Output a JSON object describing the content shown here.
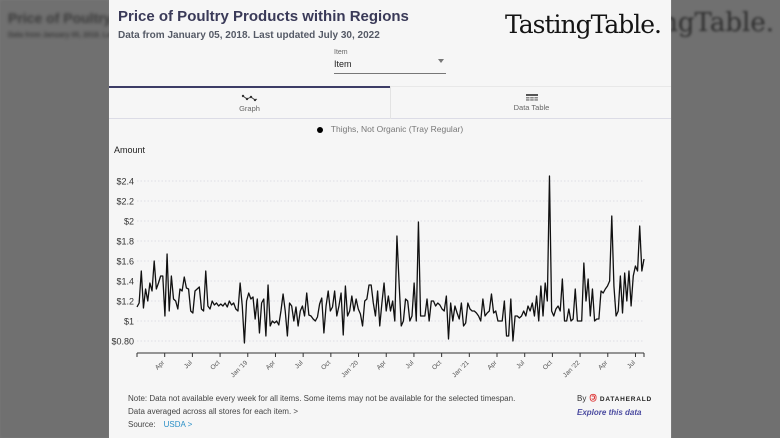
{
  "header": {
    "title": "Price of Poultry Products within Regions",
    "subtitle": "Data from January 05, 2018. Last updated July 30, 2022",
    "brand": "TastingTable."
  },
  "item_select": {
    "label": "Item",
    "value": "Item"
  },
  "tabs": [
    {
      "label": "Graph",
      "icon": "line-graph-icon",
      "active": true
    },
    {
      "label": "Data Table",
      "icon": "table-icon",
      "active": false
    }
  ],
  "footer": {
    "note_line1": "Note: Data not available every week for all items. Some items may not be available for the selected timespan.",
    "note_line2": "Data averaged across all stores for each item. >",
    "source_label": "Source:",
    "source_link": "USDA >",
    "by_label": "By",
    "by_brand": "DATAHERALD",
    "explore_link": "Explore this data"
  },
  "colors": {
    "title": "#3a3a58",
    "line": "#111111",
    "link": "#2a8fc6",
    "explore": "#4b4ba0",
    "tab_active": "#3d3d66"
  },
  "chart_data": {
    "type": "line",
    "title": "Price of Poultry Products within Regions",
    "xlabel": "",
    "ylabel": "Amount",
    "legend": {
      "entries": [
        "Thighs, Not Organic (Tray Regular)"
      ],
      "position": "top-center"
    },
    "ylim": [
      0.7,
      2.5
    ],
    "y_ticks": [
      0.8,
      1.0,
      1.2,
      1.4,
      1.6,
      1.8,
      2.0,
      2.2,
      2.4
    ],
    "y_tick_labels": [
      "$0.80",
      "$1",
      "$1.2",
      "$1.4",
      "$1.6",
      "$1.8",
      "$2",
      "$2.2",
      "$2.4"
    ],
    "grid": true,
    "x_range_weeks": [
      0,
      238
    ],
    "x_ticks": [
      {
        "week": 13,
        "label": "Apr"
      },
      {
        "week": 26,
        "label": "Jul"
      },
      {
        "week": 39,
        "label": "Oct"
      },
      {
        "week": 52,
        "label": "Jan '19"
      },
      {
        "week": 65,
        "label": "Apr"
      },
      {
        "week": 78,
        "label": "Jul"
      },
      {
        "week": 91,
        "label": "Oct"
      },
      {
        "week": 104,
        "label": "Jan '20"
      },
      {
        "week": 117,
        "label": "Apr"
      },
      {
        "week": 130,
        "label": "Jul"
      },
      {
        "week": 143,
        "label": "Oct"
      },
      {
        "week": 156,
        "label": "Jan '21"
      },
      {
        "week": 169,
        "label": "Apr"
      },
      {
        "week": 182,
        "label": "Jul"
      },
      {
        "week": 195,
        "label": "Oct"
      },
      {
        "week": 208,
        "label": "Jan '22"
      },
      {
        "week": 221,
        "label": "Apr"
      },
      {
        "week": 234,
        "label": "Jul"
      }
    ],
    "series": [
      {
        "name": "Thighs, Not Organic (Tray Regular)",
        "values": [
          1.14,
          1.18,
          1.5,
          1.13,
          1.32,
          1.2,
          1.38,
          1.3,
          1.6,
          1.32,
          1.38,
          1.45,
          1.45,
          1.05,
          1.67,
          1.1,
          1.45,
          1.22,
          1.2,
          1.12,
          1.32,
          1.3,
          1.44,
          1.33,
          1.32,
          1.1,
          1.08,
          1.3,
          1.32,
          1.34,
          1.12,
          1.1,
          1.5,
          1.15,
          1.12,
          1.2,
          1.16,
          1.18,
          1.15,
          1.17,
          1.15,
          1.18,
          1.14,
          1.2,
          1.16,
          1.18,
          1.12,
          1.1,
          1.38,
          1.15,
          0.78,
          1.2,
          1.28,
          1.22,
          1.24,
          1.02,
          1.22,
          0.88,
          1.18,
          1.22,
          0.85,
          1.36,
          0.95,
          1.0,
          0.98,
          1.0,
          0.96,
          1.1,
          1.27,
          1.1,
          0.85,
          1.18,
          1.15,
          1.0,
          1.14,
          0.95,
          1.1,
          1.15,
          1.05,
          1.28,
          1.06,
          1.05,
          1.02,
          1.0,
          1.04,
          1.17,
          1.23,
          0.88,
          1.15,
          1.3,
          1.1,
          1.14,
          1.3,
          1.05,
          1.15,
          1.28,
          0.86,
          1.35,
          1.05,
          1.1,
          1.25,
          1.1,
          1.22,
          1.12,
          1.07,
          0.95,
          1.2,
          1.22,
          1.36,
          1.36,
          1.18,
          1.05,
          1.3,
          0.95,
          1.18,
          1.38,
          1.1,
          1.25,
          1.1,
          1.2,
          1.0,
          1.85,
          1.38,
          0.95,
          1.0,
          1.22,
          1.2,
          1.0,
          1.05,
          1.38,
          1.0,
          1.99,
          1.05,
          1.05,
          1.05,
          1.22,
          1.0,
          1.2,
          1.2,
          1.15,
          1.18,
          1.16,
          1.12,
          1.1,
          1.25,
          0.82,
          1.18,
          1.0,
          1.15,
          1.08,
          1.02,
          1.18,
          0.95,
          0.98,
          1.18,
          1.12,
          1.1,
          1.1,
          1.08,
          1.05,
          1.0,
          1.22,
          1.05,
          1.08,
          1.1,
          1.27,
          1.08,
          1.1,
          1.0,
          1.0,
          1.0,
          1.2,
          0.85,
          0.85,
          1.22,
          0.8,
          1.05,
          1.05,
          1.03,
          1.05,
          1.1,
          1.05,
          1.15,
          1.1,
          1.18,
          1.05,
          1.25,
          1.0,
          1.35,
          1.05,
          1.38,
          1.2,
          2.45,
          1.1,
          1.05,
          1.12,
          1.15,
          1.1,
          1.42,
          1.0,
          1.0,
          1.12,
          1.0,
          1.02,
          1.32,
          1.0,
          1.0,
          1.0,
          1.58,
          1.2,
          1.42,
          1.05,
          1.32,
          1.0,
          1.02,
          1.02,
          1.3,
          1.28,
          1.32,
          1.35,
          1.4,
          2.05,
          1.35,
          1.05,
          1.1,
          1.45,
          1.08,
          1.48,
          1.2,
          1.5,
          1.15,
          1.45,
          1.55,
          1.5,
          1.95,
          1.5,
          1.62
        ]
      }
    ]
  }
}
